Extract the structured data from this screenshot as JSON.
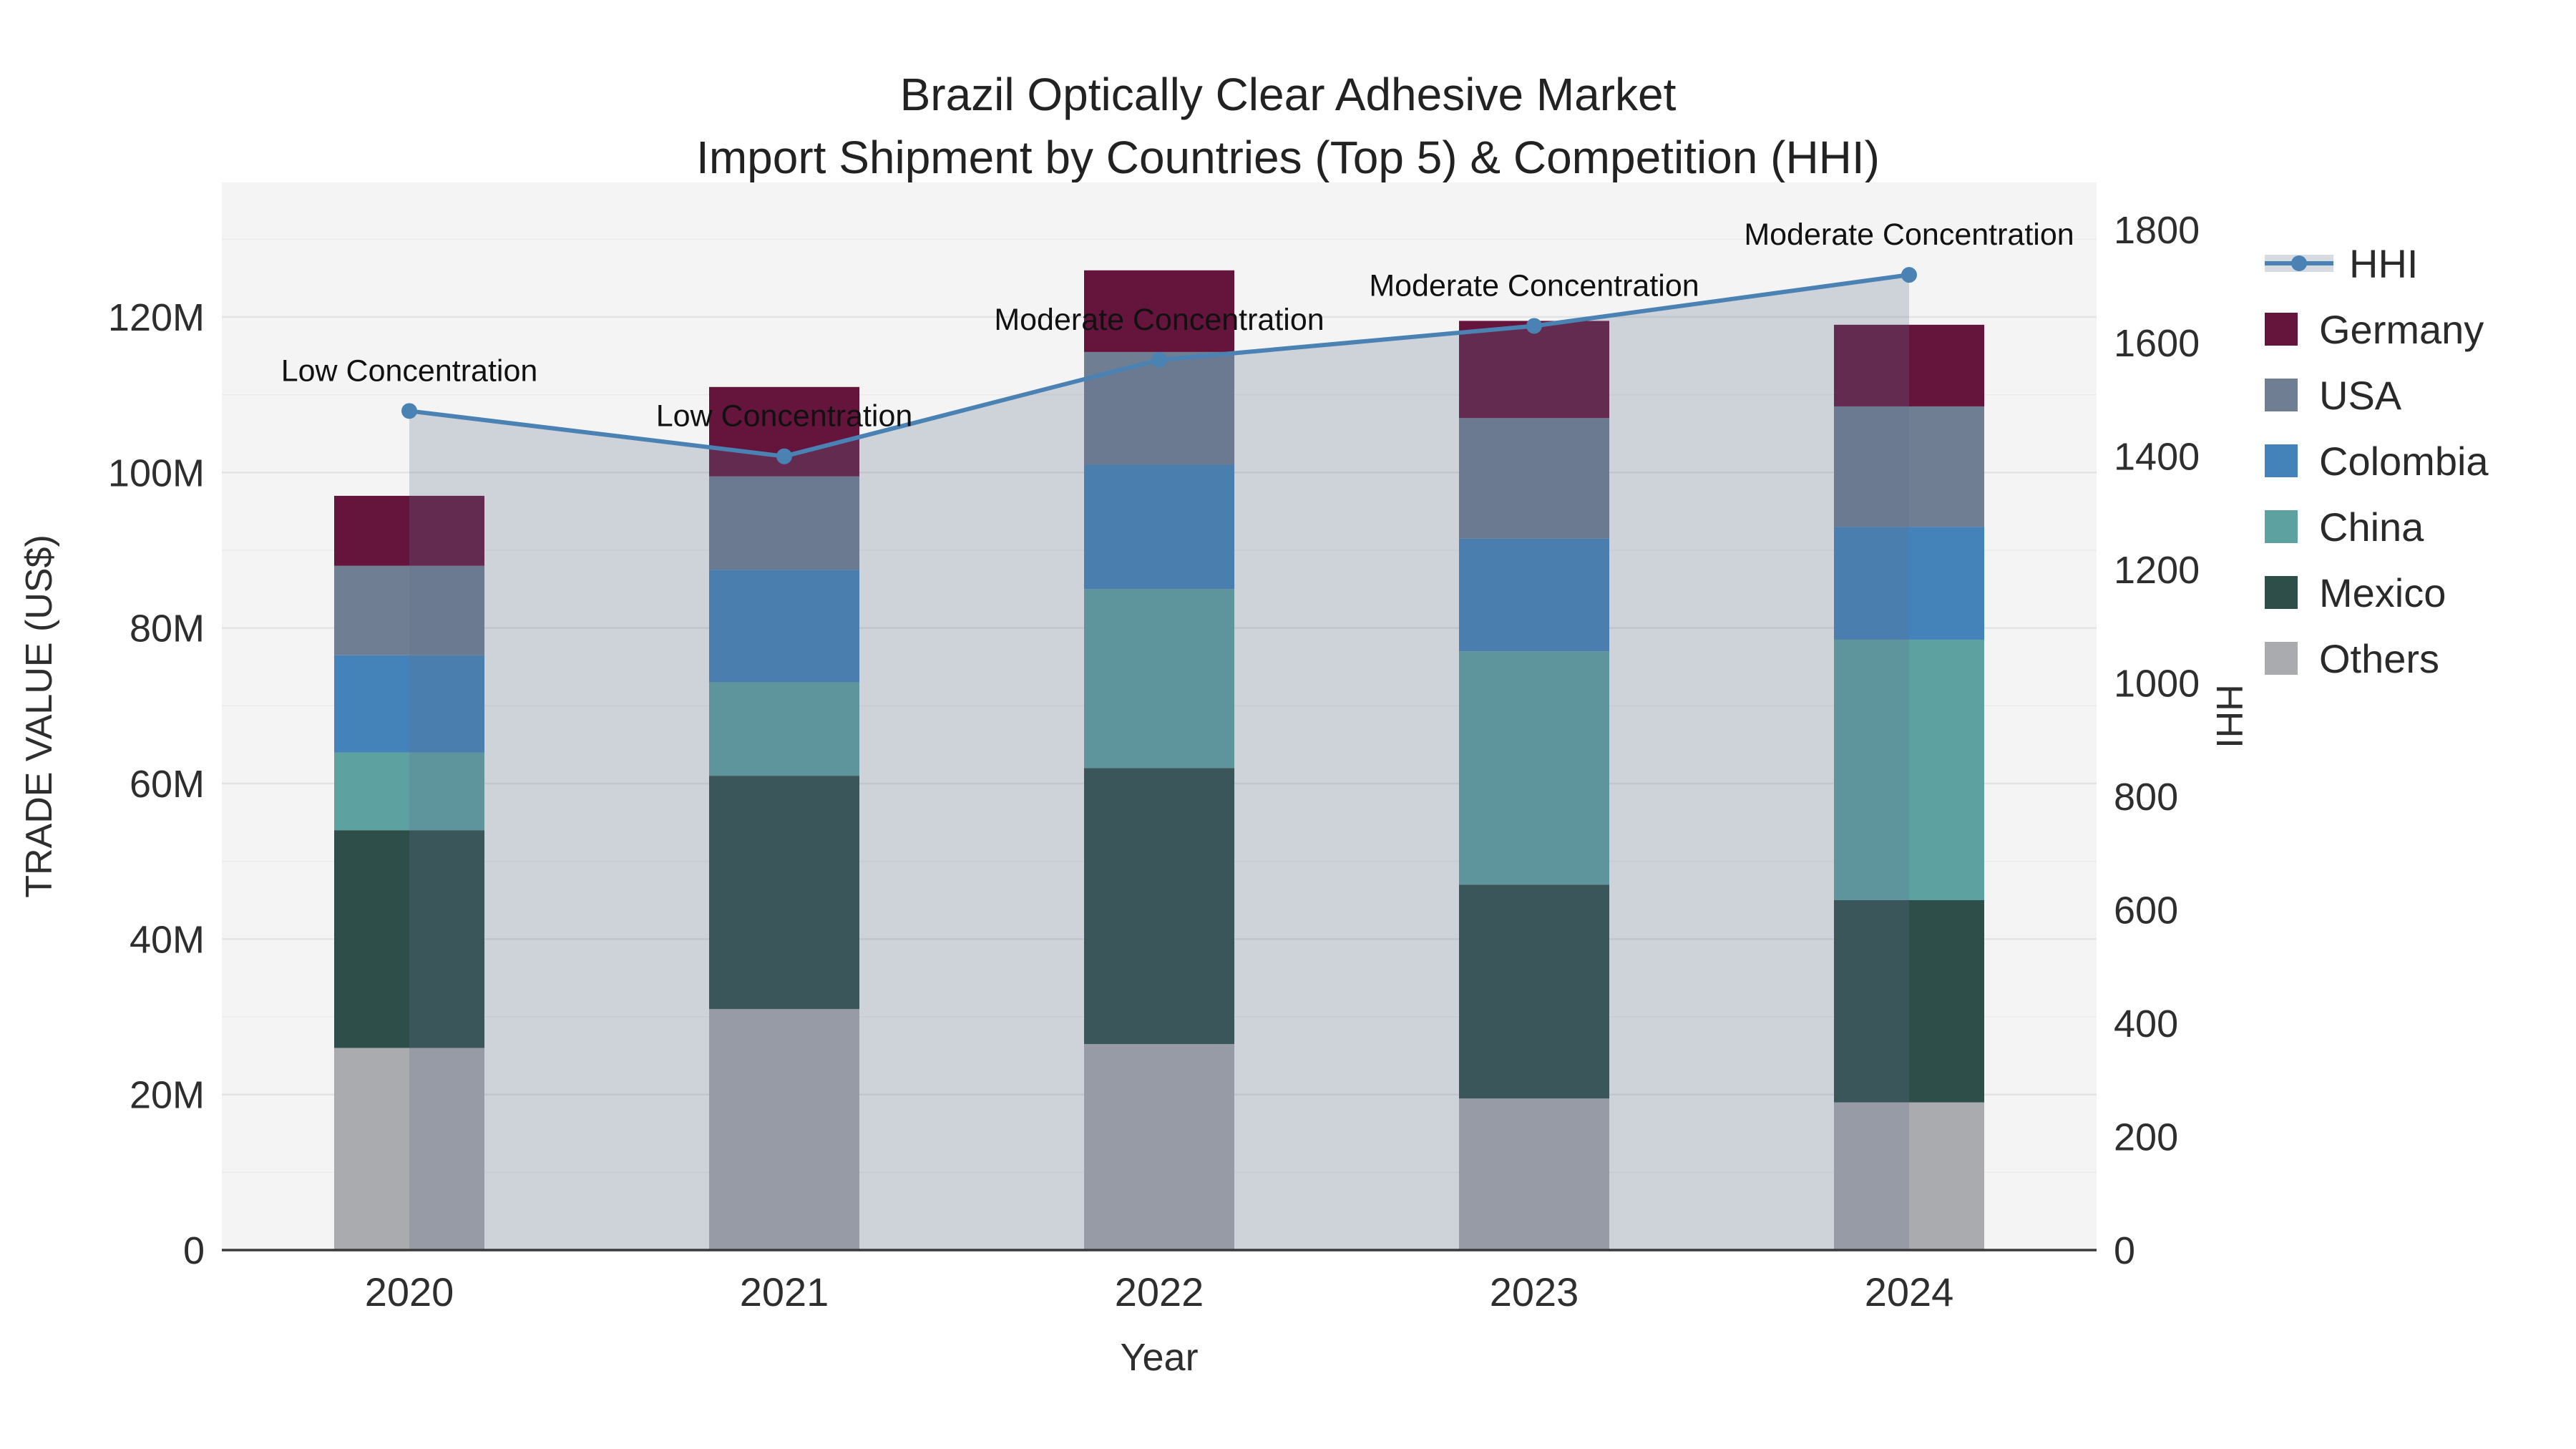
{
  "title": {
    "line1": "Brazil Optically Clear Adhesive Market",
    "line2": "Import Shipment by Countries (Top 5) & Competition (HHI)"
  },
  "chart_data": {
    "type": "bar+line",
    "unit": "USD millions (trade value), index points (HHI)",
    "categories": [
      "2020",
      "2021",
      "2022",
      "2023",
      "2024"
    ],
    "bar_series": [
      {
        "name": "Germany",
        "color": "#65143c",
        "values": [
          9,
          11.5,
          10.5,
          12.5,
          10.5
        ]
      },
      {
        "name": "USA",
        "color": "#6f7e93",
        "values": [
          11.5,
          12,
          14.5,
          15.5,
          15.5
        ]
      },
      {
        "name": "Colombia",
        "color": "#4383ba",
        "values": [
          12.5,
          14.5,
          16,
          14.5,
          14.5
        ]
      },
      {
        "name": "China",
        "color": "#5da1a1",
        "values": [
          10,
          12,
          23,
          30,
          33.5
        ]
      },
      {
        "name": "Mexico",
        "color": "#2d4e49",
        "values": [
          28,
          30,
          35.5,
          27.5,
          26
        ]
      },
      {
        "name": "Others",
        "color": "#a9abae",
        "values": [
          26,
          31,
          26.5,
          19.5,
          19
        ]
      }
    ],
    "stack_order": "bottom-to-top: Others, Mexico, China, Colombia, USA, Germany",
    "line_series": {
      "name": "HHI",
      "color": "#4a82b4",
      "fill_color": "rgba(95,112,140,0.26)",
      "values": [
        1480,
        1400,
        1570,
        1630,
        1720
      ],
      "annotations": [
        "Low Concentration",
        "Low Concentration",
        "Moderate Concentration",
        "Moderate Concentration",
        "Moderate Concentration"
      ]
    },
    "xlabel": "Year",
    "ylabel_left": "TRADE VALUE (US$)",
    "ylabel_right": "HHI",
    "yticks_left_labels": [
      "0",
      "20M",
      "40M",
      "60M",
      "80M",
      "100M",
      "120M"
    ],
    "yticks_left_values": [
      0,
      20,
      40,
      60,
      80,
      100,
      120
    ],
    "ylim_left": [
      0,
      137.3
    ],
    "yticks_right_values": [
      0,
      200,
      400,
      600,
      800,
      1000,
      1200,
      1400,
      1600,
      1800
    ],
    "ylim_right": [
      0,
      1883
    ],
    "legend_order": [
      "HHI",
      "Germany",
      "USA",
      "Colombia",
      "China",
      "Mexico",
      "Others"
    ],
    "legend_position": "outside-top-right",
    "grid": "horizontal, every 10M (left axis)",
    "plot_bg_color": "#f4f4f4",
    "grid_major_color": "#e3e3e3",
    "grid_minor_color": "#ebebeb",
    "axisline_color": "#3a3a3a",
    "text_color": "#2e2e2e"
  }
}
